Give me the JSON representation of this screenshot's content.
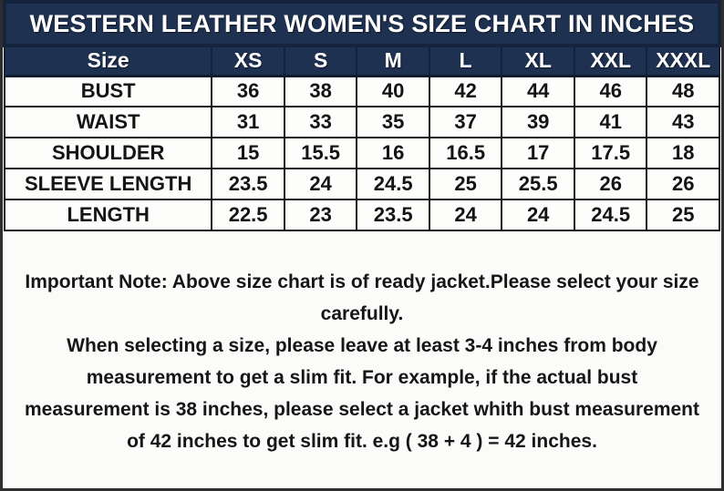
{
  "title": "WESTERN LEATHER WOMEN'S SIZE CHART IN INCHES",
  "chart_data": {
    "type": "table",
    "title": "WESTERN LEATHER WOMEN'S SIZE CHART IN INCHES",
    "columns": [
      "Size",
      "XS",
      "S",
      "M",
      "L",
      "XL",
      "XXL",
      "XXXL"
    ],
    "rows": [
      {
        "label": "BUST",
        "values": [
          "36",
          "38",
          "40",
          "42",
          "44",
          "46",
          "48"
        ]
      },
      {
        "label": "WAIST",
        "values": [
          "31",
          "33",
          "35",
          "37",
          "39",
          "41",
          "43"
        ]
      },
      {
        "label": "SHOULDER",
        "values": [
          "15",
          "15.5",
          "16",
          "16.5",
          "17",
          "17.5",
          "18"
        ]
      },
      {
        "label": "SLEEVE LENGTH",
        "values": [
          "23.5",
          "24",
          "24.5",
          "25",
          "25.5",
          "26",
          "26"
        ]
      },
      {
        "label": "LENGTH",
        "values": [
          "22.5",
          "23",
          "23.5",
          "24",
          "24",
          "24.5",
          "25"
        ]
      }
    ]
  },
  "notes": {
    "important": "Important Note: Above size chart is of ready jacket.Please select your size carefully.",
    "advice": "When selecting a size, please leave at least 3-4 inches from body measurement to get a slim fit. For example, if the actual bust measurement is 38 inches, please select a jacket whith bust measurement of 42 inches to get slim fit. e.g ( 38 + 4 ) = 42 inches."
  },
  "colors": {
    "header_bg": "#1f3150",
    "header_text": "#ffffff",
    "header_border": "#15233c",
    "cell_bg": "#fdfdfc",
    "cell_border": "#1c1c1c",
    "text": "#161616",
    "frame_border": "#2e2e2e"
  }
}
